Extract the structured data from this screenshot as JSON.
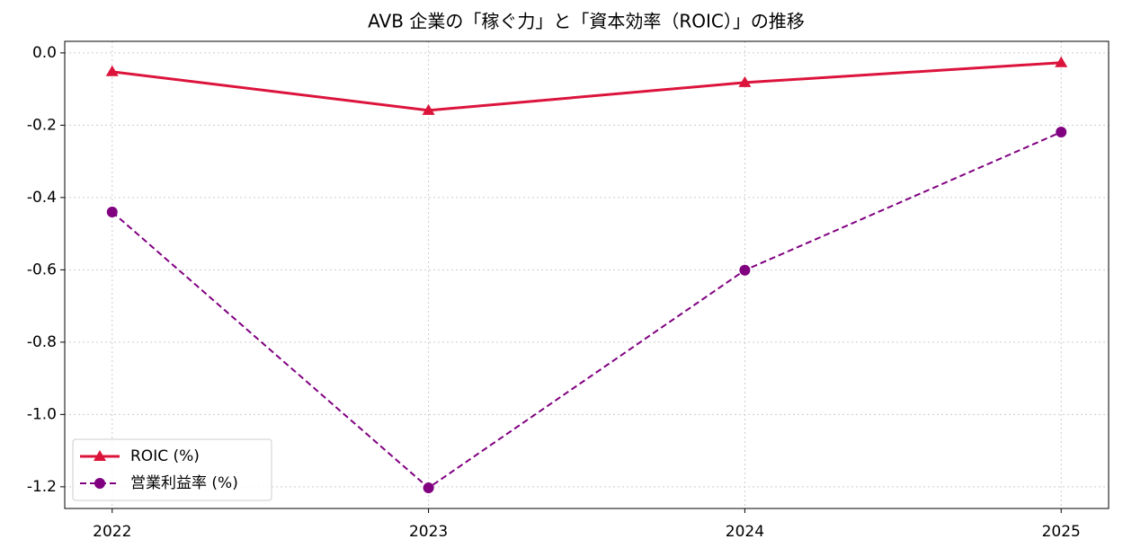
{
  "chart_data": {
    "type": "line",
    "title": "AVB 企業の「稼ぐ力」と「資本効率（ROIC）」の推移",
    "x": [
      2022,
      2023,
      2024,
      2025
    ],
    "series": [
      {
        "name": "ROIC (%)",
        "color": "#dc143c",
        "marker": "triangle",
        "linestyle": "solid",
        "values": [
          -0.052,
          -0.159,
          -0.082,
          -0.027
        ]
      },
      {
        "name": "営業利益率 (%)",
        "color": "#800080",
        "marker": "circle",
        "linestyle": "dashed",
        "values": [
          -0.44,
          -1.203,
          -0.601,
          -0.219
        ]
      }
    ],
    "xlim": [
      2021.85,
      2025.15
    ],
    "xticks": [
      2022,
      2023,
      2024,
      2025
    ],
    "ylim": [
      -1.26,
      0.032
    ],
    "yticks": [
      {
        "value": 0,
        "label": "0.0"
      },
      -0.2,
      -0.4,
      -0.6,
      -0.8,
      {
        "value": -1,
        "label": "-1.0"
      },
      -1.2
    ],
    "grid": true,
    "legend": "lower left"
  }
}
